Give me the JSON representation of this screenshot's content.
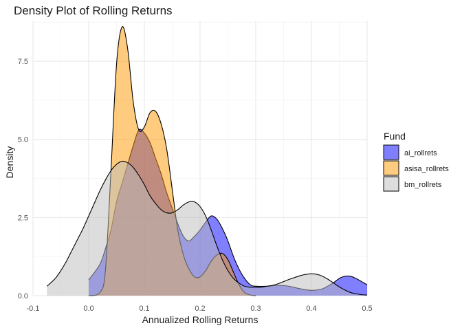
{
  "chart_data": {
    "type": "area",
    "title": "Density Plot of Rolling Returns",
    "xlabel": "Annualized Rolling Returns",
    "ylabel": "Density",
    "xlim": [
      -0.1,
      0.5
    ],
    "ylim": [
      0,
      8.8
    ],
    "x_ticks": [
      "-0.1",
      "0.0",
      "0.1",
      "0.2",
      "0.3",
      "0.4",
      "0.5"
    ],
    "y_ticks": [
      "0.0",
      "2.5",
      "5.0",
      "7.5"
    ],
    "grid": true,
    "legend": {
      "title": "Fund",
      "position": "right"
    },
    "series": [
      {
        "name": "ai_rollrets",
        "color": "#0000ff",
        "x": [
          0.0,
          0.02,
          0.03,
          0.04,
          0.05,
          0.06,
          0.07,
          0.08,
          0.09,
          0.1,
          0.11,
          0.12,
          0.13,
          0.14,
          0.15,
          0.16,
          0.17,
          0.18,
          0.19,
          0.2,
          0.21,
          0.22,
          0.23,
          0.24,
          0.25,
          0.26,
          0.27,
          0.28,
          0.29,
          0.3,
          0.32,
          0.34,
          0.36,
          0.38,
          0.4,
          0.42,
          0.44,
          0.45,
          0.46,
          0.47,
          0.48,
          0.49,
          0.5
        ],
        "y": [
          0.5,
          1.0,
          1.5,
          2.1,
          3.0,
          3.6,
          4.2,
          4.8,
          5.3,
          5.2,
          4.9,
          4.4,
          3.9,
          3.3,
          2.8,
          2.3,
          1.9,
          1.75,
          1.9,
          2.1,
          2.35,
          2.55,
          2.45,
          2.15,
          1.75,
          1.25,
          0.85,
          0.55,
          0.35,
          0.3,
          0.3,
          0.33,
          0.3,
          0.22,
          0.17,
          0.22,
          0.42,
          0.55,
          0.62,
          0.62,
          0.55,
          0.45,
          0.35
        ]
      },
      {
        "name": "asisa_rollrets",
        "color": "#ff9900",
        "x": [
          0.0,
          0.02,
          0.03,
          0.04,
          0.05,
          0.06,
          0.07,
          0.08,
          0.09,
          0.1,
          0.11,
          0.12,
          0.13,
          0.14,
          0.15,
          0.16,
          0.17,
          0.18,
          0.19,
          0.2,
          0.21,
          0.22,
          0.23,
          0.24,
          0.25,
          0.26,
          0.27,
          0.28,
          0.29,
          0.3
        ],
        "y": [
          0.0,
          0.1,
          0.8,
          4.0,
          7.4,
          8.6,
          7.9,
          6.2,
          5.3,
          5.4,
          5.85,
          5.9,
          5.5,
          4.7,
          3.4,
          2.1,
          1.3,
          0.85,
          0.6,
          0.6,
          0.8,
          1.1,
          1.3,
          1.35,
          1.15,
          0.75,
          0.35,
          0.1,
          0.02,
          0.0
        ]
      },
      {
        "name": "bm_rollrets",
        "color": "#bbbbbb",
        "x": [
          -0.075,
          -0.06,
          -0.05,
          -0.04,
          -0.03,
          -0.02,
          -0.01,
          0.0,
          0.01,
          0.02,
          0.03,
          0.04,
          0.05,
          0.06,
          0.07,
          0.08,
          0.09,
          0.1,
          0.11,
          0.12,
          0.13,
          0.14,
          0.15,
          0.16,
          0.17,
          0.18,
          0.19,
          0.2,
          0.21,
          0.22,
          0.23,
          0.24,
          0.25,
          0.26,
          0.27,
          0.28,
          0.29,
          0.3,
          0.31,
          0.32,
          0.33,
          0.34,
          0.35,
          0.36,
          0.37,
          0.38,
          0.39,
          0.4,
          0.41,
          0.42,
          0.43,
          0.44,
          0.45,
          0.46,
          0.47,
          0.48,
          0.49,
          0.5
        ],
        "y": [
          0.3,
          0.55,
          0.8,
          1.1,
          1.45,
          1.8,
          2.15,
          2.55,
          2.95,
          3.35,
          3.7,
          4.0,
          4.2,
          4.3,
          4.25,
          4.1,
          3.85,
          3.55,
          3.2,
          2.95,
          2.75,
          2.65,
          2.65,
          2.75,
          2.9,
          3.0,
          3.0,
          2.85,
          2.55,
          2.1,
          1.6,
          1.15,
          0.8,
          0.55,
          0.4,
          0.3,
          0.27,
          0.27,
          0.27,
          0.3,
          0.33,
          0.38,
          0.45,
          0.52,
          0.58,
          0.64,
          0.68,
          0.7,
          0.68,
          0.62,
          0.52,
          0.4,
          0.28,
          0.18,
          0.1,
          0.06,
          0.03,
          0.02
        ]
      }
    ]
  }
}
